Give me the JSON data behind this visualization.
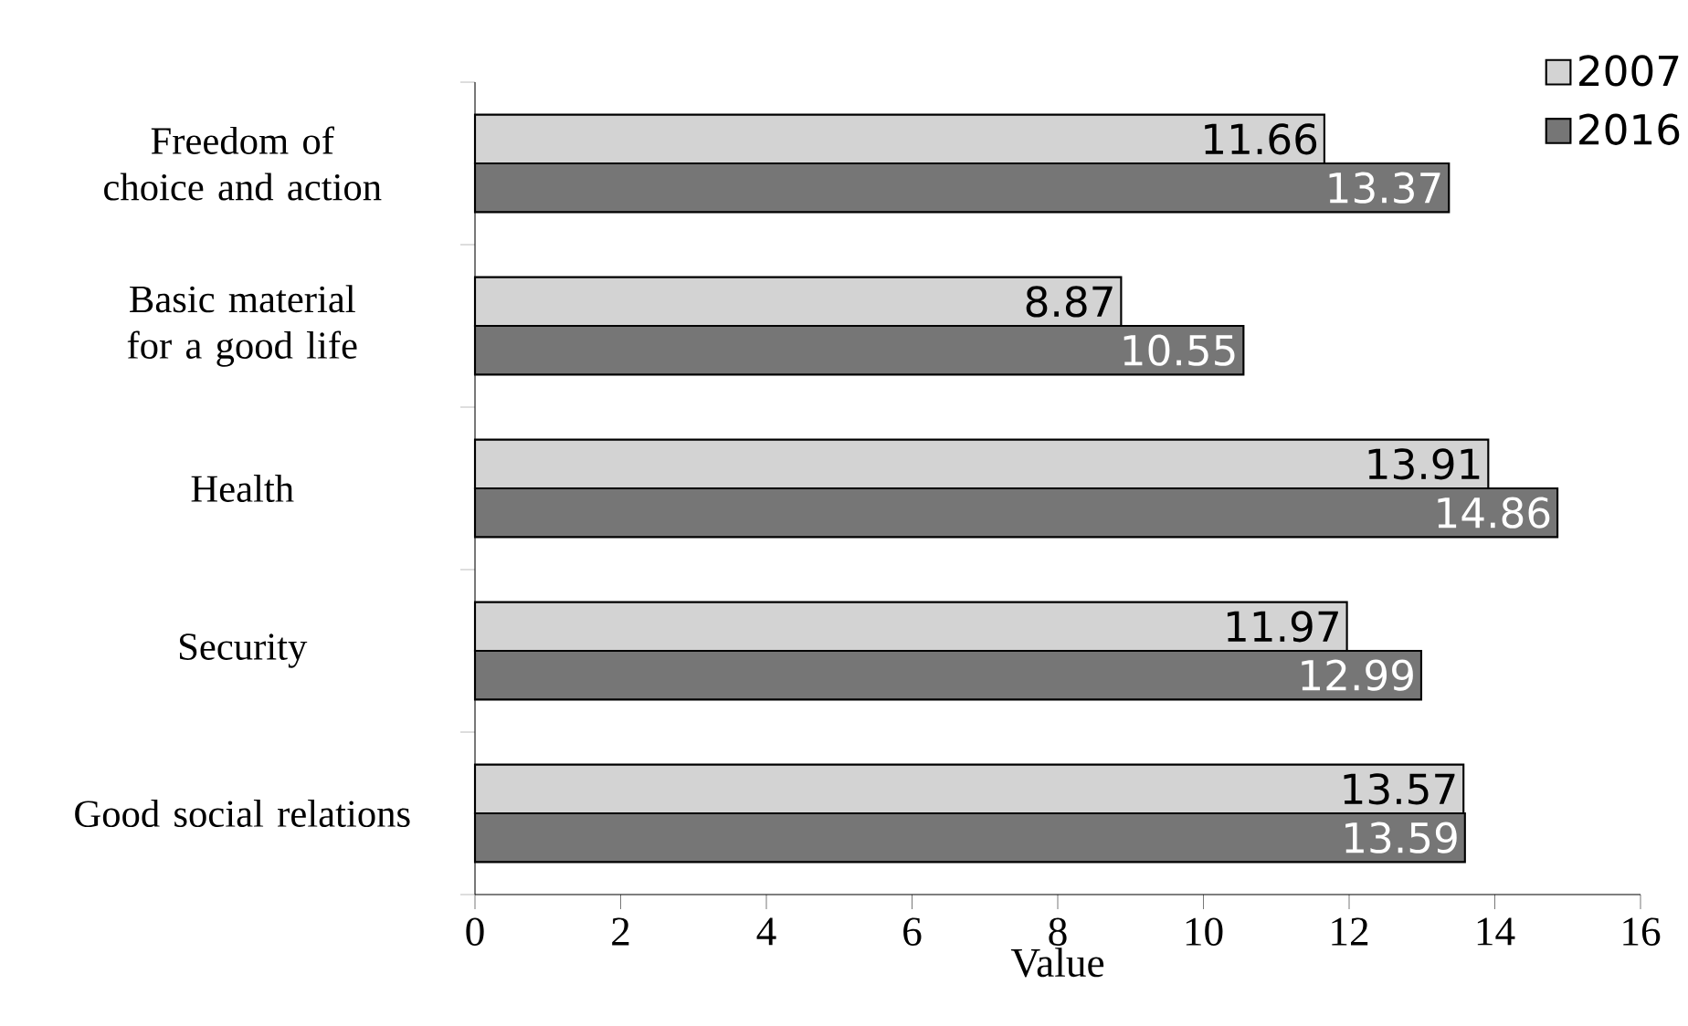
{
  "chart_data": {
    "type": "bar",
    "orientation": "horizontal",
    "xlabel": "Value",
    "categories": [
      "Freedom of choice and action",
      "Basic material for a good life",
      "Health",
      "Security",
      "Good social relations"
    ],
    "series": [
      {
        "name": "2007",
        "color": "#d3d3d3",
        "values": [
          11.66,
          8.87,
          13.91,
          11.97,
          13.57
        ]
      },
      {
        "name": "2016",
        "color": "#767676",
        "values": [
          13.37,
          10.55,
          14.86,
          12.99,
          13.59
        ]
      }
    ],
    "xlim": [
      0,
      16
    ],
    "xticks": [
      0,
      2,
      4,
      6,
      8,
      10,
      12,
      14,
      16
    ],
    "data_labels": true,
    "legend": "top right",
    "grid": false
  }
}
